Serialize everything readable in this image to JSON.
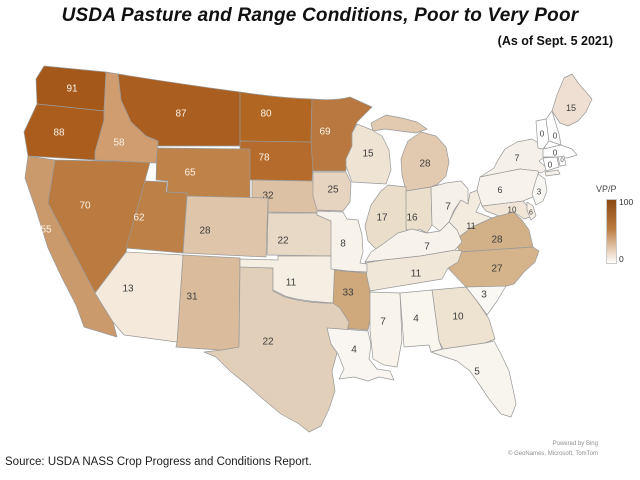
{
  "title": "USDA Pasture and Range Conditions, Poor to Very Poor",
  "subtitle": "(As of Sept. 5 2021)",
  "source": "Source: USDA NASS Crop Progress and Conditions Report.",
  "attribution": {
    "line1": "Powered by Bing",
    "line2": "© GeoNames, Microsoft, TomTom"
  },
  "legend": {
    "label": "VP/P",
    "max": "100",
    "min": "0",
    "top_color": "#8a4a12",
    "mid_color": "#bb7b40",
    "bottom_color": "#ffffff"
  },
  "map": {
    "background": "#ffffff",
    "border_color": "#999999",
    "label_dark": "#3d3d3d",
    "label_light": "#fdf3e7",
    "white_text_threshold": 55
  },
  "chart_data": {
    "type": "choropleth",
    "region": "United States (lower 48 states)",
    "title": "USDA Pasture and Range Conditions, Poor to Very Poor",
    "subtitle": "(As of Sept. 5 2021)",
    "legend_label": "VP/P",
    "scale": {
      "min": 0,
      "max": 100,
      "min_color": "#ffffff",
      "max_color": "#8a4a12"
    },
    "states": [
      {
        "id": "WA",
        "name": "Washington",
        "value": 91,
        "color": "#a4591a"
      },
      {
        "id": "OR",
        "name": "Oregon",
        "value": 88,
        "color": "#aa5d1d"
      },
      {
        "id": "MT",
        "name": "Montana",
        "value": 87,
        "color": "#aa5e20"
      },
      {
        "id": "ND",
        "name": "North Dakota",
        "value": 80,
        "color": "#b16722"
      },
      {
        "id": "SD",
        "name": "South Dakota",
        "value": 78,
        "color": "#b46b2b"
      },
      {
        "id": "NV",
        "name": "Nevada",
        "value": 70,
        "color": "#bb7b40"
      },
      {
        "id": "MN",
        "name": "Minnesota",
        "value": 69,
        "color": "#b87840"
      },
      {
        "id": "WY",
        "name": "Wyoming",
        "value": 65,
        "color": "#bf8349"
      },
      {
        "id": "UT",
        "name": "Utah",
        "value": 62,
        "color": "#bd8046"
      },
      {
        "id": "ID",
        "name": "Idaho",
        "value": 58,
        "color": "#cf9d70"
      },
      {
        "id": "CA",
        "name": "California",
        "value": 55,
        "color": "#cb9a6c"
      },
      {
        "id": "AR",
        "name": "Arkansas",
        "value": 33,
        "color": "#cfa87c"
      },
      {
        "id": "NE",
        "name": "Nebraska",
        "value": 32,
        "color": "#ddc1a4"
      },
      {
        "id": "NM",
        "name": "New Mexico",
        "value": 31,
        "color": "#dabb9b"
      },
      {
        "id": "CO",
        "name": "Colorado",
        "value": 28,
        "color": "#dfc5a9"
      },
      {
        "id": "MI",
        "name": "Michigan",
        "value": 28,
        "color": "#e2cab1"
      },
      {
        "id": "VA",
        "name": "Virginia",
        "value": 28,
        "color": "#d3b188"
      },
      {
        "id": "NC",
        "name": "North Carolina",
        "value": 27,
        "color": "#d5b48c"
      },
      {
        "id": "IA",
        "name": "Iowa",
        "value": 25,
        "color": "#e6d4c0"
      },
      {
        "id": "TX",
        "name": "Texas",
        "value": 22,
        "color": "#e2cfba"
      },
      {
        "id": "KS",
        "name": "Kansas",
        "value": 22,
        "color": "#e8d8c6"
      },
      {
        "id": "IL",
        "name": "Illinois",
        "value": 17,
        "color": "#eaddc9"
      },
      {
        "id": "IN",
        "name": "Indiana",
        "value": 16,
        "color": "#ebdecb"
      },
      {
        "id": "WI",
        "name": "Wisconsin",
        "value": 15,
        "color": "#efe3d3"
      },
      {
        "id": "ME",
        "name": "Maine",
        "value": 15,
        "color": "#eedfd2"
      },
      {
        "id": "AZ",
        "name": "Arizona",
        "value": 13,
        "color": "#f4e9db"
      },
      {
        "id": "TN",
        "name": "Tennessee",
        "value": 11,
        "color": "#f1e7d9"
      },
      {
        "id": "OK",
        "name": "Oklahoma",
        "value": 11,
        "color": "#f5eee2"
      },
      {
        "id": "WV",
        "name": "West Virginia",
        "value": 11,
        "color": "#f3ebde"
      },
      {
        "id": "GA",
        "name": "Georgia",
        "value": 10,
        "color": "#eee2d0"
      },
      {
        "id": "MD",
        "name": "Maryland",
        "value": 10,
        "color": "#f0e5d6"
      },
      {
        "id": "MO",
        "name": "Missouri",
        "value": 8,
        "color": "#f7f3eb"
      },
      {
        "id": "OH",
        "name": "Ohio",
        "value": 7,
        "color": "#f6f1e8"
      },
      {
        "id": "KY",
        "name": "Kentucky",
        "value": 7,
        "color": "#f7f2ea"
      },
      {
        "id": "NY",
        "name": "New York",
        "value": 7,
        "color": "#f5f0e9"
      },
      {
        "id": "MS",
        "name": "Mississippi",
        "value": 7,
        "color": "#f8f3eb"
      },
      {
        "id": "PA",
        "name": "Pennsylvania",
        "value": 6,
        "color": "#f7f3ec"
      },
      {
        "id": "DE",
        "name": "Delaware",
        "value": 6,
        "color": "#f5efe5"
      },
      {
        "id": "FL",
        "name": "Florida",
        "value": 5,
        "color": "#f8f5ef"
      },
      {
        "id": "AL",
        "name": "Alabama",
        "value": 4,
        "color": "#f9f6f0"
      },
      {
        "id": "LA",
        "name": "Louisiana",
        "value": 4,
        "color": "#f9f6f1"
      },
      {
        "id": "SC",
        "name": "South Carolina",
        "value": 3,
        "color": "#faf8f4"
      },
      {
        "id": "NJ",
        "name": "New Jersey",
        "value": 3,
        "color": "#f9f7f3"
      },
      {
        "id": "VT",
        "name": "Vermont",
        "value": 0,
        "color": "#fefefe"
      },
      {
        "id": "NH",
        "name": "New Hampshire",
        "value": 0,
        "color": "#fefefe"
      },
      {
        "id": "MA",
        "name": "Massachusetts",
        "value": 0,
        "color": "#fefefe"
      },
      {
        "id": "CT",
        "name": "Connecticut",
        "value": 0,
        "color": "#fefefe"
      },
      {
        "id": "RI",
        "name": "Rhode Island",
        "value": 0,
        "color": "#fefefe"
      }
    ]
  }
}
